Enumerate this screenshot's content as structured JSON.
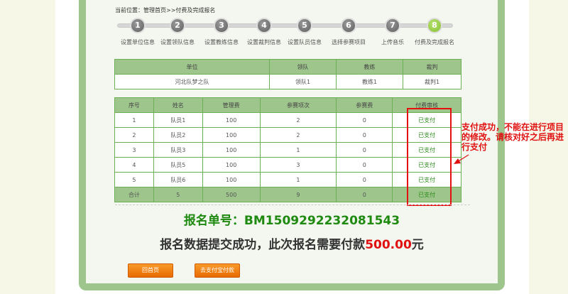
{
  "breadcrumb": "当前位置：管理首页>>付费及完成报名",
  "steps": [
    {
      "num": "1",
      "label": "设置单位信息"
    },
    {
      "num": "2",
      "label": "设置领队信息"
    },
    {
      "num": "3",
      "label": "设置教练信息"
    },
    {
      "num": "4",
      "label": "设置裁判信息"
    },
    {
      "num": "5",
      "label": "设置队员信息"
    },
    {
      "num": "6",
      "label": "选择参赛项目"
    },
    {
      "num": "7",
      "label": "上传音乐"
    },
    {
      "num": "8",
      "label": "付费及完成报名"
    }
  ],
  "active_step": 8,
  "unit_table": {
    "headers": [
      "单位",
      "领队",
      "教练",
      "裁判"
    ],
    "row": [
      "河北队梦之队",
      "领队1",
      "教练1",
      "裁判1"
    ]
  },
  "fee_table": {
    "headers": [
      "序号",
      "姓名",
      "管理费",
      "参赛项次",
      "参赛费",
      "付费审核"
    ],
    "rows": [
      [
        "1",
        "队员1",
        "100",
        "2",
        "0",
        "已支付"
      ],
      [
        "2",
        "队员2",
        "100",
        "2",
        "0",
        "已支付"
      ],
      [
        "3",
        "队员3",
        "100",
        "1",
        "0",
        "已支付"
      ],
      [
        "4",
        "队员5",
        "100",
        "3",
        "0",
        "已支付"
      ],
      [
        "5",
        "队员6",
        "100",
        "1",
        "0",
        "已支付"
      ]
    ],
    "total": [
      "合计",
      "5",
      "500",
      "9",
      "0",
      "已支付"
    ]
  },
  "annotation": "支付成功，不能在进行项目的修改。请核对好之后再进行支付",
  "order": {
    "label": "报名单号：",
    "number": "BM1509292232081543"
  },
  "message": {
    "text": "报名数据提交成功，此次报名需要付款",
    "amount": "500.00",
    "unit": "元"
  },
  "buttons": {
    "home": "回首页",
    "alipay": "去支付宝付款"
  },
  "colors": {
    "panel": "#9ec58c",
    "accent_green": "#1f8a10",
    "alert_red": "#e01010",
    "button": "#f08010"
  }
}
